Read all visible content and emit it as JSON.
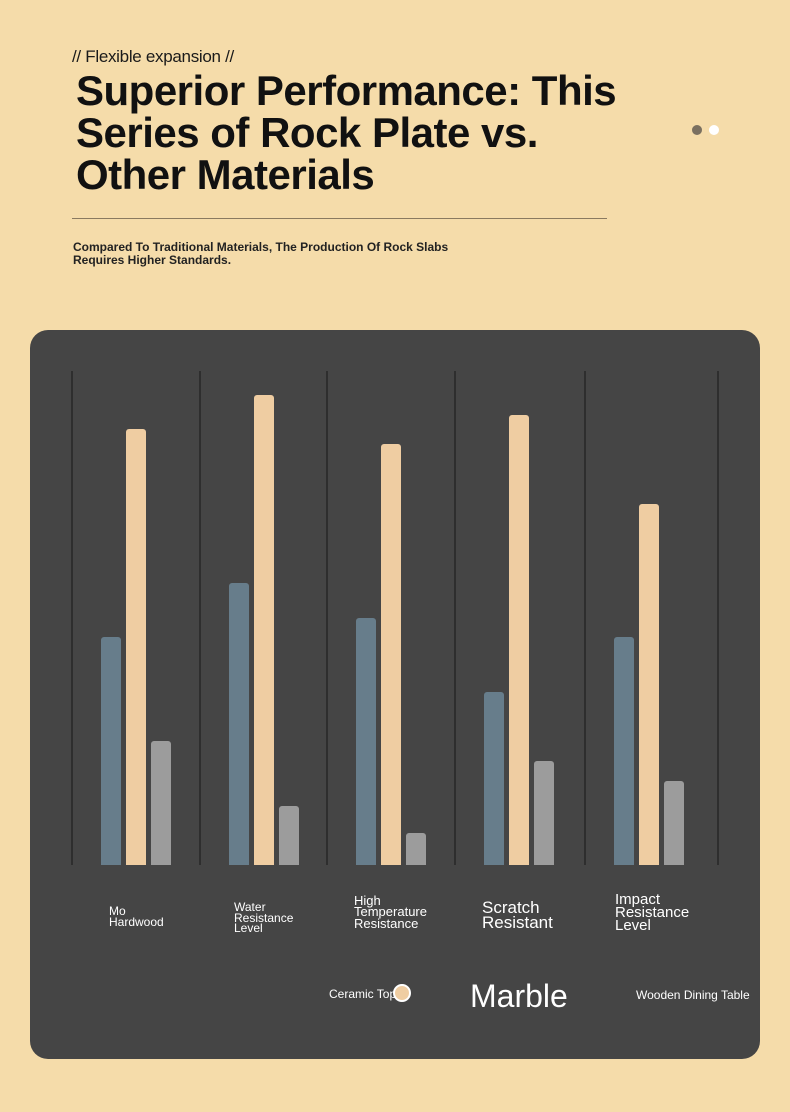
{
  "header": {
    "kicker": "// Flexible expansion //",
    "title": "Superior Performance: This Series of Rock Plate vs. Other Materials",
    "subtitle": "Compared To Traditional Materials, The Production Of Rock Slabs Requires Higher Standards."
  },
  "chart_data": {
    "type": "bar",
    "categories": [
      "Mo Hardwood",
      "Water Resistance Level",
      "High Temperature Resistance",
      "Scratch Resistant",
      "Impact Resistance Level"
    ],
    "series": [
      {
        "name": "Ceramic Top",
        "color": "#677d8b",
        "values": [
          46,
          57,
          50,
          35,
          46
        ]
      },
      {
        "name": "Marble",
        "color": "#efcda2",
        "values": [
          88,
          95,
          85,
          91,
          73
        ]
      },
      {
        "name": "Wooden Dining Table",
        "color": "#9c9c9c",
        "values": [
          25,
          12,
          6.5,
          21,
          17
        ]
      }
    ],
    "ylim": [
      0,
      100
    ]
  }
}
